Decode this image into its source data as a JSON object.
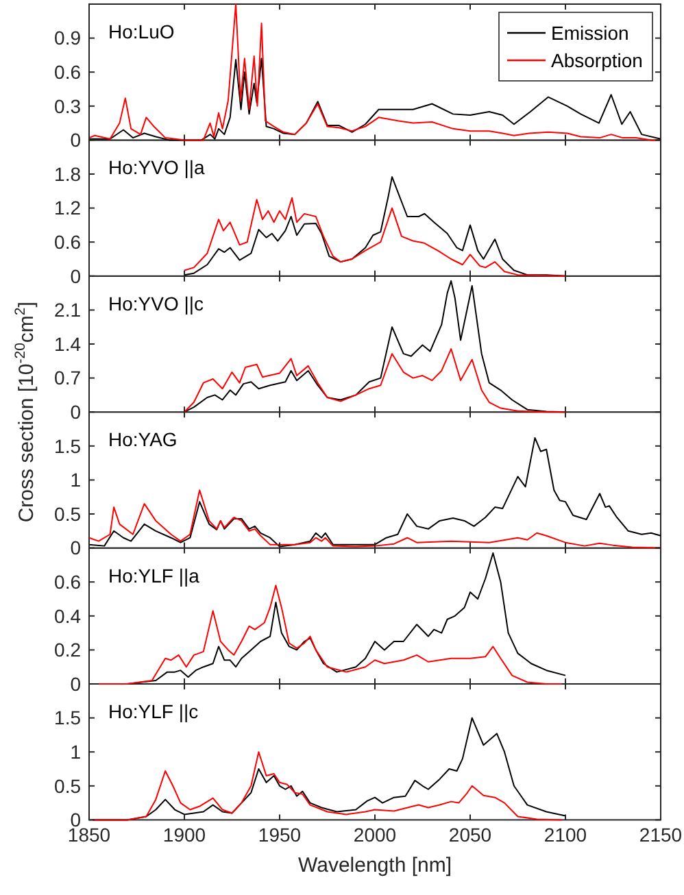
{
  "chart_data": [
    {
      "type": "line",
      "title": "Ho:LuO",
      "xlim": [
        1850,
        2150
      ],
      "xticks": [
        1850,
        1900,
        1950,
        2000,
        2050,
        2100,
        2150
      ],
      "ylim": [
        0,
        1.2
      ],
      "yticks": [
        0,
        0.3,
        0.6,
        0.9
      ],
      "tick_labels": "y",
      "legend": "top right",
      "grid": false,
      "series": [
        {
          "name": "Emission",
          "color": "#000000",
          "x": [
            1850,
            1854,
            1861,
            1868,
            1873,
            1879,
            1885,
            1892,
            1904,
            1909,
            1913.6,
            1916,
            1918,
            1921,
            1924,
            1927,
            1929.7,
            1931.6,
            1934,
            1936.6,
            1938,
            1940.5,
            1943,
            1947,
            1952,
            1958,
            1964,
            1970,
            1975,
            1981,
            1988,
            1995,
            2002,
            2012,
            2020,
            2030,
            2041,
            2050,
            2060,
            2067,
            2073,
            2081.6,
            2091,
            2101,
            2108,
            2117.6,
            2124,
            2129.6,
            2134,
            2140,
            2150
          ],
          "values": [
            0.01,
            0.01,
            0.01,
            0.09,
            0.02,
            0.06,
            0.03,
            0,
            0,
            0,
            0.05,
            0.01,
            0.1,
            0.05,
            0.2,
            0.71,
            0.27,
            0.6,
            0.23,
            0.5,
            0.33,
            0.72,
            0.12,
            0.1,
            0.06,
            0.05,
            0.15,
            0.34,
            0.13,
            0.13,
            0.07,
            0.14,
            0.27,
            0.27,
            0.27,
            0.32,
            0.23,
            0.22,
            0.25,
            0.22,
            0.14,
            0.25,
            0.38,
            0.3,
            0.23,
            0.15,
            0.4,
            0.14,
            0.25,
            0.05,
            0.01
          ]
        },
        {
          "name": "Absorption",
          "color": "#ff0000",
          "x": [
            1850,
            1853,
            1861,
            1866,
            1869,
            1872,
            1877,
            1880,
            1884,
            1890,
            1900,
            1910,
            1913.5,
            1915.5,
            1918,
            1920,
            1923,
            1927,
            1929.5,
            1931.6,
            1934,
            1936.6,
            1938.3,
            1940.5,
            1942.5,
            1947,
            1952,
            1958,
            1964,
            1970,
            1975,
            1981,
            1988,
            1995,
            2002,
            2012,
            2020,
            2030,
            2041,
            2050,
            2060,
            2067,
            2073,
            2081,
            2091,
            2101,
            2108,
            2118,
            2124,
            2130,
            2137,
            2145,
            2150
          ],
          "values": [
            0.02,
            0.04,
            0.01,
            0.15,
            0.37,
            0.1,
            0.05,
            0.2,
            0.12,
            0.02,
            0,
            0,
            0.15,
            0.03,
            0.24,
            0.1,
            0.35,
            1.2,
            0.35,
            0.72,
            0.27,
            0.74,
            0.3,
            1.03,
            0.17,
            0.12,
            0.07,
            0.05,
            0.15,
            0.32,
            0.12,
            0.11,
            0.08,
            0.12,
            0.2,
            0.17,
            0.15,
            0.16,
            0.1,
            0.08,
            0.08,
            0.06,
            0.04,
            0.06,
            0.07,
            0.06,
            0.03,
            0.02,
            0.05,
            0.02,
            0.02,
            0,
            0
          ]
        }
      ]
    },
    {
      "type": "line",
      "title": "Ho:YVO ||a",
      "xlim": [
        1850,
        2150
      ],
      "xticks": [
        1850,
        1900,
        1950,
        2000,
        2050,
        2100,
        2150
      ],
      "ylim": [
        0,
        2.4
      ],
      "yticks": [
        0,
        0.6,
        1.2,
        1.8
      ],
      "tick_labels": "y",
      "grid": false,
      "series": [
        {
          "color": "#000000",
          "x": [
            1900,
            1905,
            1912,
            1918,
            1921,
            1924,
            1929,
            1935,
            1939,
            1943,
            1946,
            1949,
            1953,
            1956,
            1959,
            1963,
            1969,
            1972,
            1976,
            1982,
            1988,
            1995,
            1999,
            2003,
            2007,
            2009,
            2013,
            2017,
            2023,
            2026,
            2031,
            2038,
            2043,
            2046,
            2050,
            2054,
            2057,
            2063,
            2067,
            2073,
            2080,
            2090,
            2100
          ],
          "values": [
            0.02,
            0.05,
            0.2,
            0.48,
            0.42,
            0.5,
            0.28,
            0.4,
            0.82,
            0.68,
            0.75,
            0.62,
            0.8,
            1.05,
            0.72,
            0.92,
            0.93,
            0.75,
            0.35,
            0.25,
            0.3,
            0.5,
            0.72,
            0.78,
            1.4,
            1.75,
            1.4,
            1.05,
            1.05,
            1.1,
            0.95,
            0.75,
            0.5,
            0.45,
            0.9,
            0.45,
            0.3,
            0.65,
            0.3,
            0.1,
            0.02,
            0.02,
            0
          ]
        },
        {
          "color": "#ff0000",
          "x": [
            1900,
            1905,
            1912,
            1918,
            1920.5,
            1924,
            1929,
            1933,
            1938,
            1941,
            1944,
            1947,
            1950,
            1953,
            1956.5,
            1959,
            1963,
            1969,
            1973,
            1978,
            1982,
            1988,
            1995,
            2003,
            2009,
            2014,
            2020,
            2026,
            2033,
            2040,
            2046,
            2050,
            2055,
            2058,
            2063,
            2068,
            2075,
            2085,
            2100
          ],
          "values": [
            0.1,
            0.15,
            0.4,
            1,
            0.8,
            0.95,
            0.55,
            0.6,
            1.35,
            1,
            1.15,
            0.95,
            1.15,
            1,
            1.38,
            0.95,
            1.1,
            1.05,
            0.7,
            0.35,
            0.25,
            0.3,
            0.45,
            0.6,
            1.2,
            0.7,
            0.62,
            0.58,
            0.45,
            0.3,
            0.2,
            0.38,
            0.18,
            0.15,
            0.25,
            0.08,
            0.02,
            0.01,
            0
          ]
        }
      ]
    },
    {
      "type": "line",
      "title": "Ho:YVO ||c",
      "xlim": [
        1850,
        2150
      ],
      "xticks": [
        1850,
        1900,
        1950,
        2000,
        2050,
        2100,
        2150
      ],
      "ylim": [
        0,
        2.8
      ],
      "yticks": [
        0,
        0.7,
        1.4,
        2.1
      ],
      "tick_labels": "y",
      "grid": false,
      "series": [
        {
          "color": "#000000",
          "x": [
            1900,
            1905,
            1912,
            1916,
            1920,
            1924,
            1927,
            1931,
            1935,
            1939,
            1945,
            1953,
            1956,
            1959,
            1965,
            1970,
            1975,
            1982,
            1990,
            1997,
            2003,
            2009,
            2015,
            2019,
            2025,
            2029,
            2035,
            2038,
            2040,
            2042,
            2045,
            2051,
            2056,
            2060,
            2066,
            2072,
            2080,
            2090,
            2100
          ],
          "values": [
            0,
            0.1,
            0.3,
            0.35,
            0.25,
            0.45,
            0.35,
            0.58,
            0.62,
            0.48,
            0.55,
            0.62,
            0.85,
            0.65,
            0.85,
            0.55,
            0.3,
            0.25,
            0.35,
            0.62,
            0.7,
            1.75,
            1.2,
            1.15,
            1.38,
            1.25,
            1.8,
            2.45,
            2.7,
            2.35,
            1.48,
            2.6,
            1.2,
            0.6,
            0.45,
            0.25,
            0.05,
            0.01,
            0
          ]
        },
        {
          "color": "#ff0000",
          "x": [
            1900,
            1905,
            1910,
            1915,
            1920,
            1925,
            1929,
            1932,
            1938,
            1941,
            1950,
            1956,
            1959,
            1965,
            1970,
            1975,
            1982,
            1990,
            1997,
            2003,
            2009,
            2015,
            2020,
            2025,
            2030,
            2035,
            2040,
            2045,
            2051,
            2056,
            2060,
            2066,
            2075,
            2090,
            2100
          ],
          "values": [
            0,
            0.2,
            0.6,
            0.68,
            0.48,
            0.82,
            0.6,
            0.92,
            0.98,
            0.72,
            0.8,
            1.1,
            0.75,
            0.95,
            0.6,
            0.3,
            0.22,
            0.35,
            0.48,
            0.55,
            1.2,
            0.82,
            0.7,
            0.75,
            0.65,
            0.85,
            1.3,
            0.65,
            1.08,
            0.45,
            0.2,
            0.08,
            0.02,
            0,
            0
          ]
        }
      ]
    },
    {
      "type": "line",
      "title": "Ho:YAG",
      "ylabel": "Cross section [10$^{-20}$cm$^{2}$]",
      "xlim": [
        1850,
        2150
      ],
      "xticks": [
        1850,
        1900,
        1950,
        2000,
        2050,
        2100,
        2150
      ],
      "ylim": [
        0,
        2
      ],
      "yticks": [
        0,
        0.5,
        1,
        1.5
      ],
      "tick_labels": "y",
      "grid": false,
      "series": [
        {
          "color": "#000000",
          "x": [
            1850,
            1858,
            1863,
            1868,
            1872,
            1879,
            1885,
            1893,
            1898,
            1903,
            1908,
            1913,
            1917,
            1919,
            1921,
            1926,
            1930,
            1934,
            1937,
            1940,
            1945,
            1950,
            1958,
            1966,
            1969,
            1972,
            1974,
            1978,
            1990,
            2000,
            2006,
            2012,
            2017,
            2022,
            2028,
            2034,
            2041,
            2047,
            2052,
            2058,
            2063,
            2067,
            2075,
            2079,
            2084,
            2087,
            2090,
            2094,
            2097,
            2100,
            2104,
            2111,
            2118,
            2121,
            2123,
            2127,
            2133,
            2140,
            2145,
            2150
          ],
          "values": [
            0.05,
            0.03,
            0.25,
            0.15,
            0.1,
            0.35,
            0.25,
            0.15,
            0.08,
            0.15,
            0.68,
            0.35,
            0.27,
            0.4,
            0.28,
            0.43,
            0.43,
            0.28,
            0.32,
            0.22,
            0.15,
            0.02,
            0.05,
            0.1,
            0.22,
            0.15,
            0.22,
            0.05,
            0.05,
            0.05,
            0.15,
            0.2,
            0.5,
            0.32,
            0.28,
            0.4,
            0.44,
            0.4,
            0.32,
            0.45,
            0.6,
            0.58,
            1.05,
            0.9,
            1.62,
            1.42,
            1.45,
            0.85,
            0.7,
            0.68,
            0.48,
            0.42,
            0.8,
            0.6,
            0.62,
            0.45,
            0.25,
            0.2,
            0.22,
            0.18
          ]
        },
        {
          "color": "#ff0000",
          "x": [
            1850,
            1855,
            1861,
            1863,
            1866,
            1873,
            1879,
            1885,
            1893,
            1898,
            1903,
            1908,
            1913,
            1917,
            1919,
            1921,
            1926,
            1930,
            1934,
            1937,
            1940,
            1945,
            1958,
            1966,
            1969,
            1972,
            1974,
            1978,
            1990,
            2000,
            2010,
            2017,
            2022,
            2040,
            2060,
            2075,
            2080,
            2085,
            2090,
            2100,
            2110,
            2118,
            2125,
            2135,
            2150
          ],
          "values": [
            0.15,
            0.1,
            0.2,
            0.6,
            0.35,
            0.2,
            0.65,
            0.4,
            0.2,
            0.1,
            0.2,
            0.85,
            0.4,
            0.28,
            0.4,
            0.3,
            0.45,
            0.4,
            0.25,
            0.28,
            0.18,
            0.05,
            0.05,
            0.08,
            0.15,
            0.1,
            0.15,
            0.03,
            0.02,
            0.03,
            0.06,
            0.15,
            0.08,
            0.1,
            0.08,
            0.15,
            0.12,
            0.22,
            0.18,
            0.08,
            0.03,
            0.07,
            0.04,
            0.01,
            0
          ]
        }
      ]
    },
    {
      "type": "line",
      "title": "Ho:YLF ||a",
      "xlim": [
        1850,
        2150
      ],
      "xticks": [
        1850,
        1900,
        1950,
        2000,
        2050,
        2100,
        2150
      ],
      "ylim": [
        0,
        0.8
      ],
      "yticks": [
        0,
        0.2,
        0.4,
        0.6
      ],
      "tick_labels": "y",
      "grid": false,
      "series": [
        {
          "color": "#000000",
          "x": [
            1855,
            1870,
            1885,
            1891,
            1895,
            1898,
            1902,
            1906,
            1910,
            1915,
            1918,
            1921,
            1924,
            1927,
            1930,
            1935,
            1940,
            1945,
            1948,
            1951,
            1955,
            1959,
            1963,
            1966,
            1969,
            1973,
            1980,
            1990,
            1995,
            2000,
            2005,
            2010,
            2015,
            2022,
            2028,
            2031,
            2035,
            2038,
            2042,
            2047,
            2050,
            2054,
            2058,
            2062,
            2066,
            2070,
            2075,
            2082,
            2090,
            2100
          ],
          "values": [
            0,
            0,
            0.02,
            0.07,
            0.07,
            0.08,
            0.04,
            0.08,
            0.1,
            0.12,
            0.22,
            0.14,
            0.14,
            0.1,
            0.15,
            0.2,
            0.25,
            0.28,
            0.48,
            0.3,
            0.22,
            0.2,
            0.25,
            0.27,
            0.2,
            0.12,
            0.07,
            0.1,
            0.15,
            0.25,
            0.2,
            0.25,
            0.25,
            0.35,
            0.28,
            0.32,
            0.3,
            0.38,
            0.4,
            0.45,
            0.54,
            0.5,
            0.62,
            0.77,
            0.6,
            0.3,
            0.18,
            0.12,
            0.08,
            0.05
          ]
        },
        {
          "color": "#ff0000",
          "x": [
            1855,
            1870,
            1883,
            1890,
            1893,
            1897,
            1901,
            1905,
            1910,
            1915,
            1919,
            1923,
            1926,
            1930,
            1934,
            1937,
            1942,
            1945,
            1948,
            1951,
            1955,
            1959,
            1963,
            1966,
            1969,
            1975,
            1985,
            1995,
            2000,
            2005,
            2015,
            2022,
            2028,
            2040,
            2050,
            2058,
            2062,
            2066,
            2072,
            2080,
            2090,
            2098
          ],
          "values": [
            0,
            0,
            0.02,
            0.15,
            0.14,
            0.17,
            0.1,
            0.17,
            0.19,
            0.43,
            0.25,
            0.2,
            0.17,
            0.25,
            0.34,
            0.32,
            0.36,
            0.45,
            0.58,
            0.45,
            0.24,
            0.21,
            0.24,
            0.28,
            0.2,
            0.1,
            0.07,
            0.1,
            0.14,
            0.12,
            0.14,
            0.17,
            0.13,
            0.15,
            0.15,
            0.16,
            0.22,
            0.15,
            0.05,
            0.01,
            0,
            0
          ]
        }
      ]
    },
    {
      "type": "line",
      "title": "Ho:YLF ||c",
      "xlabel": "Wavelength [nm]",
      "xlim": [
        1850,
        2150
      ],
      "xticks": [
        1850,
        1900,
        1950,
        2000,
        2050,
        2100,
        2150
      ],
      "ylim": [
        0,
        2
      ],
      "yticks": [
        0,
        0.5,
        1,
        1.5
      ],
      "grid": false,
      "series": [
        {
          "color": "#000000",
          "x": [
            1852,
            1870,
            1880,
            1885,
            1890,
            1895,
            1900,
            1905,
            1910,
            1915,
            1920,
            1925,
            1930,
            1935,
            1939,
            1943,
            1947,
            1950,
            1953,
            1956,
            1959,
            1962,
            1966,
            1972,
            1980,
            1990,
            1996,
            2000,
            2004,
            2010,
            2016,
            2021,
            2025,
            2028,
            2034,
            2039,
            2043,
            2046,
            2051,
            2057,
            2064,
            2068,
            2073,
            2080,
            2090,
            2100
          ],
          "values": [
            0,
            0,
            0.05,
            0.15,
            0.3,
            0.15,
            0.08,
            0.1,
            0.12,
            0.22,
            0.12,
            0.1,
            0.25,
            0.4,
            0.75,
            0.55,
            0.65,
            0.5,
            0.45,
            0.5,
            0.35,
            0.42,
            0.25,
            0.18,
            0.12,
            0.15,
            0.28,
            0.33,
            0.25,
            0.33,
            0.35,
            0.58,
            0.5,
            0.45,
            0.6,
            0.75,
            0.72,
            0.9,
            1.5,
            1.1,
            1.27,
            1,
            0.5,
            0.22,
            0.12,
            0.06
          ]
        },
        {
          "color": "#ff0000",
          "x": [
            1852,
            1870,
            1880,
            1885,
            1890,
            1894,
            1898,
            1903,
            1908,
            1915,
            1920,
            1925,
            1930,
            1935,
            1939,
            1943,
            1947,
            1950,
            1954,
            1958,
            1962,
            1966,
            1975,
            1985,
            1995,
            2000,
            2010,
            2020,
            2023,
            2028,
            2034,
            2040,
            2044,
            2048,
            2051,
            2057,
            2063,
            2068,
            2075,
            2085,
            2098
          ],
          "values": [
            0,
            0,
            0.05,
            0.3,
            0.72,
            0.5,
            0.25,
            0.15,
            0.2,
            0.32,
            0.15,
            0.1,
            0.25,
            0.5,
            1,
            0.65,
            0.68,
            0.55,
            0.52,
            0.4,
            0.38,
            0.22,
            0.12,
            0.08,
            0.12,
            0.15,
            0.13,
            0.2,
            0.22,
            0.18,
            0.22,
            0.27,
            0.25,
            0.38,
            0.5,
            0.36,
            0.33,
            0.25,
            0.05,
            0.01,
            0
          ]
        }
      ]
    }
  ]
}
